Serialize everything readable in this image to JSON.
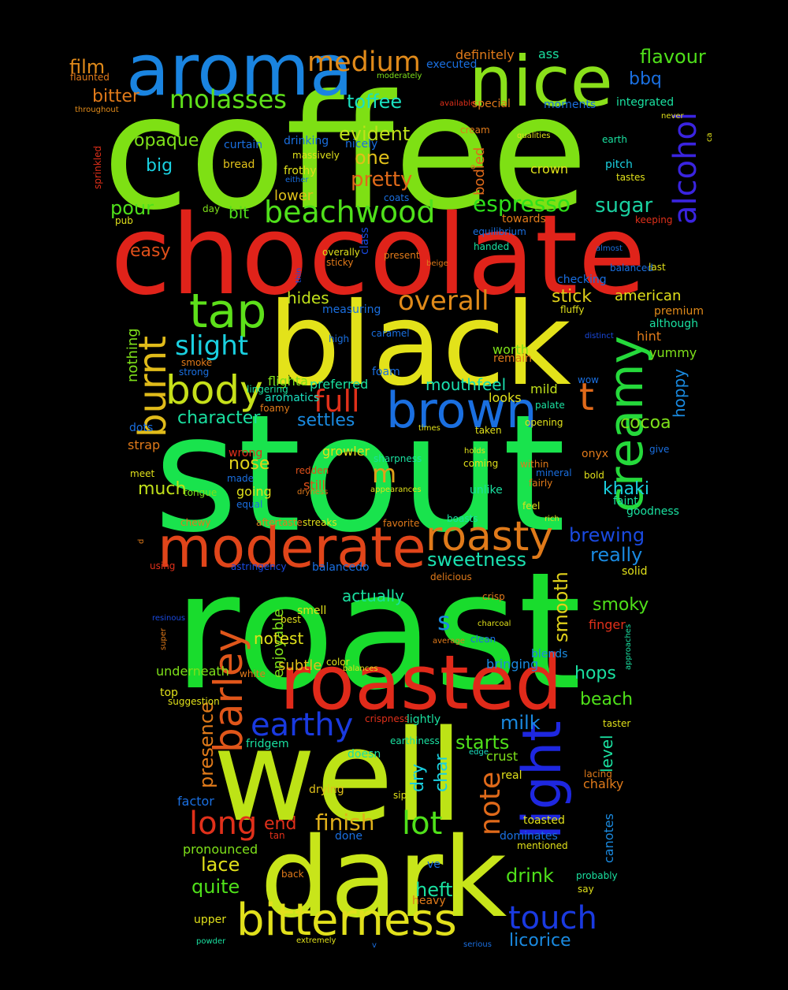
{
  "words": [
    {
      "text": "coffee",
      "color": "#7ee014"
    },
    {
      "text": "stout",
      "color": "#19e34d"
    },
    {
      "text": "roast",
      "color": "#19dc2d"
    },
    {
      "text": "chocolate",
      "color": "#e0231a"
    },
    {
      "text": "black",
      "color": "#e3e21a"
    },
    {
      "text": "well",
      "color": "#bde316"
    },
    {
      "text": "dark",
      "color": "#c8e51a"
    },
    {
      "text": "roasted",
      "color": "#e02a1a"
    },
    {
      "text": "aroma",
      "color": "#1a84e0"
    },
    {
      "text": "nice",
      "color": "#8ae01a"
    },
    {
      "text": "moderate",
      "color": "#e0451a"
    },
    {
      "text": "brown",
      "color": "#1a6fe0"
    },
    {
      "text": "creamy",
      "color": "#25d93b"
    },
    {
      "text": "light",
      "color": "#1e27e0"
    },
    {
      "text": "bitterness",
      "color": "#e1e01c"
    },
    {
      "text": "barley",
      "color": "#e0561a"
    },
    {
      "text": "burnt",
      "color": "#e0bb1a"
    },
    {
      "text": "roasty",
      "color": "#e07a1a"
    },
    {
      "text": "body",
      "color": "#c6e01a"
    },
    {
      "text": "tap",
      "color": "#5de01a"
    },
    {
      "text": "alcohol",
      "color": "#3a24e0"
    },
    {
      "text": "earthy",
      "color": "#1a3ae0"
    },
    {
      "text": "touch",
      "color": "#1a3ae0"
    },
    {
      "text": "beachwood",
      "color": "#4fe01a"
    },
    {
      "text": "medium",
      "color": "#e08a1a"
    },
    {
      "text": "molasses",
      "color": "#5fe01a"
    },
    {
      "text": "overall",
      "color": "#e08a1a"
    },
    {
      "text": "slight",
      "color": "#1ad0e0"
    },
    {
      "text": "full",
      "color": "#e0301a"
    },
    {
      "text": "t",
      "color": "#e06a1a"
    },
    {
      "text": "long",
      "color": "#e0301a"
    },
    {
      "text": "lot",
      "color": "#4fe01a"
    },
    {
      "text": "note",
      "color": "#e06a1a"
    },
    {
      "text": "espresso",
      "color": "#2ee01a"
    },
    {
      "text": "pretty",
      "color": "#e06a1a"
    },
    {
      "text": "finish",
      "color": "#e0b01a"
    },
    {
      "text": "sugar",
      "color": "#1ad0a0"
    },
    {
      "text": "m",
      "color": "#e0a01a"
    },
    {
      "text": "s",
      "color": "#1a8ae0"
    },
    {
      "text": "toffee",
      "color": "#1ae0c0"
    },
    {
      "text": "evident",
      "color": "#c0e01a"
    },
    {
      "text": "one",
      "color": "#e0c01a"
    },
    {
      "text": "pour",
      "color": "#4fe01a"
    },
    {
      "text": "easy",
      "color": "#e0501a"
    },
    {
      "text": "opaque",
      "color": "#7ee01a"
    },
    {
      "text": "big",
      "color": "#1ad0e0"
    },
    {
      "text": "bitter",
      "color": "#e07a1a"
    },
    {
      "text": "film",
      "color": "#e08a1a"
    },
    {
      "text": "flavour",
      "color": "#4fe01a"
    },
    {
      "text": "bbq",
      "color": "#1a6fe0"
    },
    {
      "text": "mouthfeel",
      "color": "#1ae0b0"
    },
    {
      "text": "cocoa",
      "color": "#7ee01a"
    },
    {
      "text": "character",
      "color": "#1ae0a0"
    },
    {
      "text": "settles",
      "color": "#1a8ae0"
    },
    {
      "text": "hides",
      "color": "#c0e01a"
    },
    {
      "text": "stick",
      "color": "#e0d01a"
    },
    {
      "text": "american",
      "color": "#e0e01a"
    },
    {
      "text": "nose",
      "color": "#e0d01a"
    },
    {
      "text": "much",
      "color": "#c0e01a"
    },
    {
      "text": "khaki",
      "color": "#1ad0e0"
    },
    {
      "text": "brewing",
      "color": "#1a4ae0"
    },
    {
      "text": "really",
      "color": "#1a8ae0"
    },
    {
      "text": "sweetness",
      "color": "#1ae0b0"
    },
    {
      "text": "smoky",
      "color": "#4fe01a"
    },
    {
      "text": "smooth",
      "color": "#e0d01a"
    },
    {
      "text": "hops",
      "color": "#1ae0a0"
    },
    {
      "text": "beach",
      "color": "#4fe01a"
    },
    {
      "text": "milk",
      "color": "#1a8ae0"
    },
    {
      "text": "starts",
      "color": "#4fe01a"
    },
    {
      "text": "drink",
      "color": "#4fe01a"
    },
    {
      "text": "heft",
      "color": "#1ae0a0"
    },
    {
      "text": "quite",
      "color": "#4fe01a"
    },
    {
      "text": "lace",
      "color": "#e0e01a"
    },
    {
      "text": "licorice",
      "color": "#1a8ae0"
    },
    {
      "text": "presence",
      "color": "#e07a1a"
    },
    {
      "text": "level",
      "color": "#1ae0a0"
    },
    {
      "text": "dry",
      "color": "#1ad0e0"
    },
    {
      "text": "char",
      "color": "#1ad0e0"
    },
    {
      "text": "end",
      "color": "#e0301a"
    },
    {
      "text": "bit",
      "color": "#4fe01a"
    },
    {
      "text": "lower",
      "color": "#e0c01a"
    },
    {
      "text": "hoppy",
      "color": "#1a8ae0"
    },
    {
      "text": "nothing",
      "color": "#7ee01a"
    },
    {
      "text": "enjoyable",
      "color": "#7ee01a"
    },
    {
      "text": "bodied",
      "color": "#e06a1a"
    },
    {
      "text": "actually",
      "color": "#1ae0a0"
    },
    {
      "text": "subtle",
      "color": "#e0c01a"
    },
    {
      "text": "underneath",
      "color": "#7ee01a"
    },
    {
      "text": "bringing",
      "color": "#1a8ae0"
    },
    {
      "text": "canotes",
      "color": "#1a8ae0"
    },
    {
      "text": "chalky",
      "color": "#e07a1a"
    },
    {
      "text": "crust",
      "color": "#7ee01a"
    },
    {
      "text": "factor",
      "color": "#1a6fe0"
    },
    {
      "text": "drying",
      "color": "#e0c01a"
    },
    {
      "text": "pronounced",
      "color": "#7ee01a"
    },
    {
      "text": "blends",
      "color": "#1a8ae0"
    },
    {
      "text": "finger",
      "color": "#e0301a"
    },
    {
      "text": "growler",
      "color": "#e0e01a"
    },
    {
      "text": "going",
      "color": "#e0e01a"
    },
    {
      "text": "still",
      "color": "#e0501a"
    },
    {
      "text": "strap",
      "color": "#e07a1a"
    },
    {
      "text": "worth",
      "color": "#7ee01a"
    },
    {
      "text": "mild",
      "color": "#c0e01a"
    },
    {
      "text": "looks",
      "color": "#e0e01a"
    },
    {
      "text": "preferred",
      "color": "#1ae0a0"
    },
    {
      "text": "aromatics",
      "color": "#1ae0c0"
    },
    {
      "text": "flighta",
      "color": "#7ee01a"
    },
    {
      "text": "yummy",
      "color": "#7ee01a"
    },
    {
      "text": "hint",
      "color": "#e07a1a"
    },
    {
      "text": "premium",
      "color": "#e08a1a"
    },
    {
      "text": "bread",
      "color": "#e0c01a"
    },
    {
      "text": "crown",
      "color": "#e0e01a"
    },
    {
      "text": "pitch",
      "color": "#1ad0e0"
    },
    {
      "text": "checking",
      "color": "#1a6fe0"
    },
    {
      "text": "ass",
      "color": "#1ae0a0"
    },
    {
      "text": "definitely",
      "color": "#e07a1a"
    },
    {
      "text": "executed",
      "color": "#1a6fe0"
    },
    {
      "text": "special",
      "color": "#e07a1a"
    },
    {
      "text": "moments",
      "color": "#1a6fe0"
    },
    {
      "text": "integrated",
      "color": "#1ae0a0"
    },
    {
      "text": "drinking",
      "color": "#1a6fe0"
    },
    {
      "text": "nicely",
      "color": "#1a6fe0"
    },
    {
      "text": "massively",
      "color": "#e0e01a"
    },
    {
      "text": "frothy",
      "color": "#e0e01a"
    },
    {
      "text": "either",
      "color": "#1a6fe0"
    },
    {
      "text": "curtain",
      "color": "#1a6fe0"
    },
    {
      "text": "earth",
      "color": "#1ae0a0"
    },
    {
      "text": "tastes",
      "color": "#e0e01a"
    },
    {
      "text": "coats",
      "color": "#1a6fe0"
    },
    {
      "text": "towards",
      "color": "#e07a1a"
    },
    {
      "text": "equilibrium",
      "color": "#1a6fe0"
    },
    {
      "text": "handed",
      "color": "#1ae0a0"
    },
    {
      "text": "balanced",
      "color": "#1a6fe0"
    },
    {
      "text": "last",
      "color": "#e0e01a"
    },
    {
      "text": "measuring",
      "color": "#1a6fe0"
    },
    {
      "text": "fluffy",
      "color": "#e0e01a"
    },
    {
      "text": "although",
      "color": "#1ae0a0"
    },
    {
      "text": "remain",
      "color": "#e07a1a"
    },
    {
      "text": "caramel",
      "color": "#1a6fe0"
    },
    {
      "text": "high",
      "color": "#1a6fe0"
    },
    {
      "text": "smoke",
      "color": "#e07a1a"
    },
    {
      "text": "strong",
      "color": "#1a6fe0"
    },
    {
      "text": "lingering",
      "color": "#1ae0a0"
    },
    {
      "text": "foamy",
      "color": "#e07a1a"
    },
    {
      "text": "dots",
      "color": "#1a6fe0"
    },
    {
      "text": "opening",
      "color": "#e0e01a"
    },
    {
      "text": "palate",
      "color": "#1ae0a0"
    },
    {
      "text": "wow",
      "color": "#1a6fe0"
    },
    {
      "text": "taken",
      "color": "#e0e01a"
    },
    {
      "text": "times",
      "color": "#e0e01a"
    },
    {
      "text": "wrong",
      "color": "#e0301a"
    },
    {
      "text": "redden",
      "color": "#e0501a"
    },
    {
      "text": "sharpness",
      "color": "#1ae0a0"
    },
    {
      "text": "holds",
      "color": "#e0e01a"
    },
    {
      "text": "coming",
      "color": "#e0e01a"
    },
    {
      "text": "within",
      "color": "#e07a1a"
    },
    {
      "text": "mineral",
      "color": "#1a6fe0"
    },
    {
      "text": "fairly",
      "color": "#e07a1a"
    },
    {
      "text": "onyx",
      "color": "#e07a1a"
    },
    {
      "text": "bold",
      "color": "#e0e01a"
    },
    {
      "text": "give",
      "color": "#1a6fe0"
    },
    {
      "text": "meet",
      "color": "#e0e01a"
    },
    {
      "text": "tongue",
      "color": "#7ee01a"
    },
    {
      "text": "made",
      "color": "#1a6fe0"
    },
    {
      "text": "equal",
      "color": "#1a6fe0"
    },
    {
      "text": "dryness",
      "color": "#e07a1a"
    },
    {
      "text": "appearances",
      "color": "#e0e01a"
    },
    {
      "text": "unlike",
      "color": "#1ae0a0"
    },
    {
      "text": "feel",
      "color": "#e0e01a"
    },
    {
      "text": "faint",
      "color": "#1ae0a0"
    },
    {
      "text": "goodness",
      "color": "#1ae0a0"
    },
    {
      "text": "chewy",
      "color": "#e07a1a"
    },
    {
      "text": "aftertaste",
      "color": "#e07a1a"
    },
    {
      "text": "streaks",
      "color": "#e0e01a"
    },
    {
      "text": "favorite",
      "color": "#e07a1a"
    },
    {
      "text": "boasts",
      "color": "#1ae0a0"
    },
    {
      "text": "rich",
      "color": "#e0e01a"
    },
    {
      "text": "using",
      "color": "#e0301a"
    },
    {
      "text": "astringency",
      "color": "#1a4ae0"
    },
    {
      "text": "balancedo",
      "color": "#1a6fe0"
    },
    {
      "text": "delicious",
      "color": "#e07a1a"
    },
    {
      "text": "solid",
      "color": "#e0e01a"
    },
    {
      "text": "crisp",
      "color": "#e07a1a"
    },
    {
      "text": "smell",
      "color": "#e0e01a"
    },
    {
      "text": "best",
      "color": "#e0e01a"
    },
    {
      "text": "charcoal",
      "color": "#e0e01a"
    },
    {
      "text": "average",
      "color": "#e07a1a"
    },
    {
      "text": "clean",
      "color": "#1a6fe0"
    },
    {
      "text": "color",
      "color": "#e0e01a"
    },
    {
      "text": "balances",
      "color": "#e0e01a"
    },
    {
      "text": "white",
      "color": "#e07a1a"
    },
    {
      "text": "top",
      "color": "#e0e01a"
    },
    {
      "text": "suggestion",
      "color": "#e0e01a"
    },
    {
      "text": "fridgem",
      "color": "#1ae0a0"
    },
    {
      "text": "crispness",
      "color": "#e0301a"
    },
    {
      "text": "lightly",
      "color": "#1ae0a0"
    },
    {
      "text": "earthiness",
      "color": "#1ae0a0"
    },
    {
      "text": "doesn",
      "color": "#1ae0a0"
    },
    {
      "text": "real",
      "color": "#e0e01a"
    },
    {
      "text": "edge",
      "color": "#1ae0c0"
    },
    {
      "text": "sip",
      "color": "#e0e01a"
    },
    {
      "text": "lacing",
      "color": "#e07a1a"
    },
    {
      "text": "taster",
      "color": "#e0e01a"
    },
    {
      "text": "tan",
      "color": "#e0301a"
    },
    {
      "text": "done",
      "color": "#1a6fe0"
    },
    {
      "text": "dominates",
      "color": "#1a6fe0"
    },
    {
      "text": "mentioned",
      "color": "#e0e01a"
    },
    {
      "text": "toasted",
      "color": "#e0e01a"
    },
    {
      "text": "back",
      "color": "#e07a1a"
    },
    {
      "text": "ve",
      "color": "#1a6fe0"
    },
    {
      "text": "heavy",
      "color": "#e07a1a"
    },
    {
      "text": "probably",
      "color": "#1ae0a0"
    },
    {
      "text": "say",
      "color": "#e0e01a"
    },
    {
      "text": "upper",
      "color": "#e0e01a"
    },
    {
      "text": "powder",
      "color": "#1ae0a0"
    },
    {
      "text": "extremely",
      "color": "#e0e01a"
    },
    {
      "text": "v",
      "color": "#1a6fe0"
    },
    {
      "text": "serious",
      "color": "#1a6fe0"
    },
    {
      "text": "flaunted",
      "color": "#e07a1a"
    },
    {
      "text": "throughout",
      "color": "#e08a1a"
    },
    {
      "text": "moderately",
      "color": "#7ee01a"
    },
    {
      "text": "available",
      "color": "#e0301a"
    },
    {
      "text": "cream",
      "color": "#e07a1a"
    },
    {
      "text": "qualities",
      "color": "#e0e01a"
    },
    {
      "text": "never",
      "color": "#e0e01a"
    },
    {
      "text": "ca",
      "color": "#e0e01a"
    },
    {
      "text": "sprinkled",
      "color": "#e0301a"
    },
    {
      "text": "day",
      "color": "#7ee01a"
    },
    {
      "text": "pub",
      "color": "#e0e01a"
    },
    {
      "text": "keeping",
      "color": "#e0301a"
    },
    {
      "text": "almost",
      "color": "#1a6fe0"
    },
    {
      "text": "overally",
      "color": "#e0e01a"
    },
    {
      "text": "sticky",
      "color": "#e07a1a"
    },
    {
      "text": "present",
      "color": "#e07a1a"
    },
    {
      "text": "beige",
      "color": "#e07a1a"
    },
    {
      "text": "class",
      "color": "#1a4ae0"
    },
    {
      "text": "thin",
      "color": "#1a4ae0"
    },
    {
      "text": "distinct",
      "color": "#1a4ae0"
    },
    {
      "text": "foam",
      "color": "#1a6fe0"
    },
    {
      "text": "d",
      "color": "#e07a1a"
    },
    {
      "text": "resinous",
      "color": "#1a4ae0"
    },
    {
      "text": "super",
      "color": "#e07a1a"
    },
    {
      "text": "notest",
      "color": "#e0e01a"
    },
    {
      "text": "approaches",
      "color": "#1ae0a0"
    },
    {
      "text": "o",
      "color": "#e07a1a"
    },
    {
      "text": "green",
      "color": "#e07a1a"
    }
  ]
}
